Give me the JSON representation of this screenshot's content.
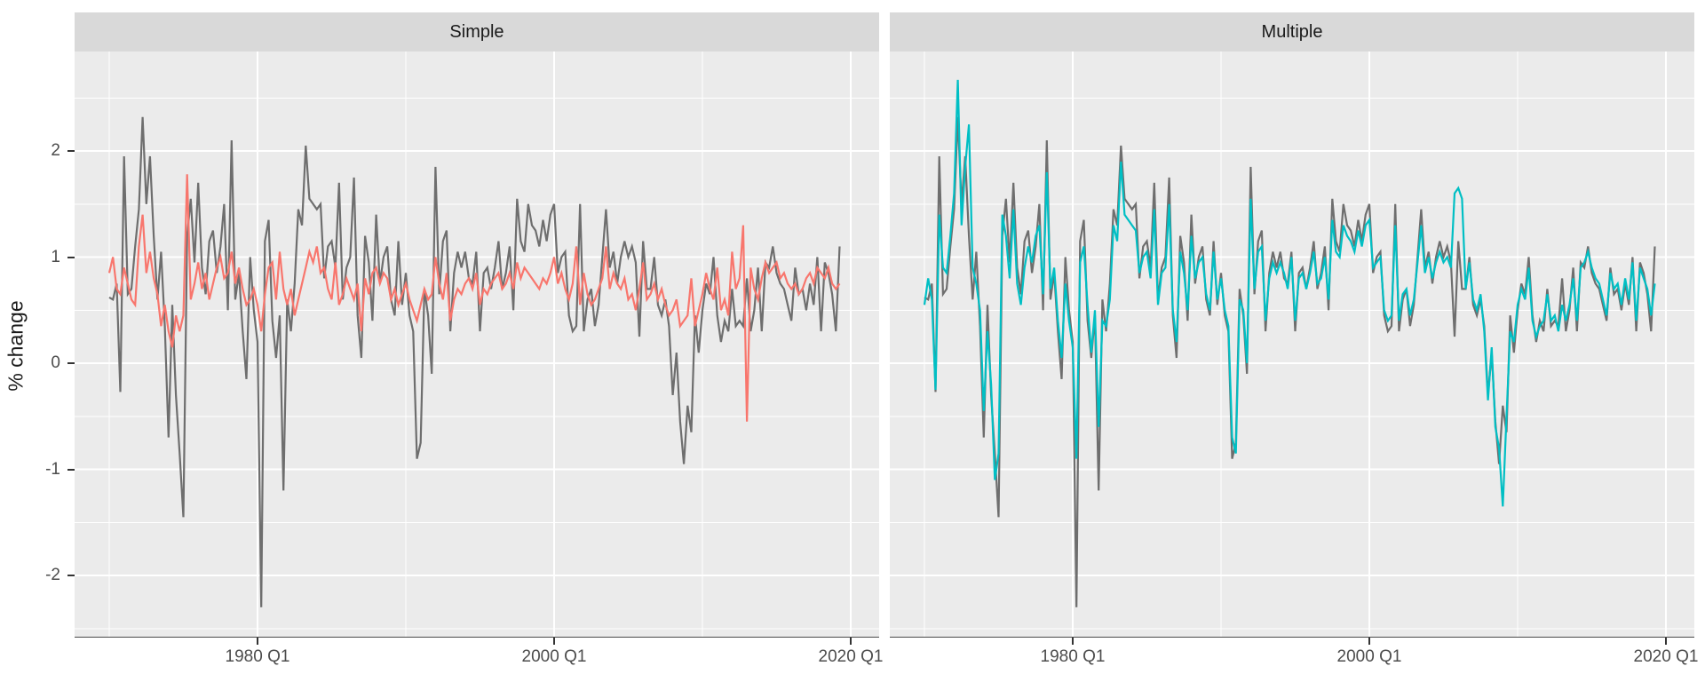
{
  "figure": {
    "y_axis": {
      "title": "% change",
      "ticks": [
        {
          "label": "2",
          "value": 2
        },
        {
          "label": "1",
          "value": 1
        },
        {
          "label": "0",
          "value": 0
        },
        {
          "label": "-1",
          "value": -1
        },
        {
          "label": "-2",
          "value": -2
        }
      ],
      "minor_values": [
        2.5,
        1.5,
        0.5,
        -0.5,
        -1.5,
        -2.5
      ]
    },
    "x_axis": {
      "ticks": [
        {
          "label": "1980 Q1",
          "year": 1980
        },
        {
          "label": "2000 Q1",
          "year": 2000
        },
        {
          "label": "2020 Q1",
          "year": 2020
        }
      ],
      "minor_years": [
        1970,
        1990,
        2010
      ]
    },
    "colors": {
      "data_line": "#6E6E6E",
      "fitted_simple": "#F8766D",
      "fitted_multiple": "#00BFC4",
      "panel_bg": "#EBEBEB",
      "strip_bg": "#D9D9D9",
      "gridline": "#FFFFFF",
      "tick_mark": "#333333",
      "tick_text": "#4D4D4D"
    }
  },
  "chart_data": {
    "type": "line",
    "title": "",
    "xlabel": "",
    "ylabel": "% change",
    "x_start": 1970.0,
    "x_step": 0.25,
    "x_end": 2019.25,
    "ylim_shown": [
      -2.58,
      2.94
    ],
    "grid": "on",
    "legend": "none",
    "facets": [
      {
        "title": "Simple",
        "series_keys": [
          "data",
          "fitted_simple"
        ]
      },
      {
        "title": "Multiple",
        "series_keys": [
          "data",
          "fitted_multiple"
        ]
      }
    ],
    "series": {
      "data": [
        0.62,
        0.6,
        0.75,
        -0.27,
        1.95,
        0.65,
        0.7,
        1.1,
        1.45,
        2.32,
        1.5,
        1.95,
        1.2,
        0.6,
        1.05,
        0.35,
        -0.7,
        0.55,
        -0.3,
        -0.85,
        -1.45,
        1.2,
        1.55,
        0.95,
        1.7,
        0.9,
        0.65,
        1.15,
        1.25,
        0.85,
        1.1,
        1.5,
        0.5,
        2.1,
        0.6,
        0.85,
        0.3,
        -0.15,
        1.0,
        0.5,
        0.2,
        -2.3,
        1.15,
        1.35,
        0.4,
        0.05,
        0.45,
        -1.2,
        0.6,
        0.3,
        0.75,
        1.45,
        1.3,
        2.05,
        1.55,
        1.5,
        1.45,
        1.5,
        0.8,
        1.1,
        1.15,
        0.9,
        1.7,
        0.6,
        0.9,
        1.0,
        1.75,
        0.45,
        0.05,
        1.2,
        0.95,
        0.4,
        1.4,
        0.75,
        1.0,
        1.1,
        0.6,
        0.45,
        1.15,
        0.55,
        0.85,
        0.45,
        0.3,
        -0.9,
        -0.75,
        0.7,
        0.45,
        -0.1,
        1.85,
        0.65,
        1.15,
        1.25,
        0.3,
        0.85,
        1.05,
        0.9,
        1.05,
        0.8,
        0.75,
        1.05,
        0.3,
        0.85,
        0.9,
        0.7,
        0.9,
        1.15,
        0.7,
        0.85,
        1.1,
        0.5,
        1.55,
        1.15,
        1.05,
        1.5,
        1.3,
        1.25,
        1.1,
        1.35,
        1.15,
        1.4,
        1.5,
        0.85,
        1.0,
        1.05,
        0.45,
        0.3,
        0.35,
        1.5,
        0.3,
        0.6,
        0.7,
        0.35,
        0.55,
        1.0,
        1.45,
        0.9,
        1.05,
        0.75,
        1.0,
        1.15,
        1.0,
        1.1,
        0.95,
        0.25,
        1.15,
        0.7,
        0.7,
        1.0,
        0.55,
        0.45,
        0.6,
        0.35,
        -0.3,
        0.1,
        -0.55,
        -0.95,
        -0.4,
        -0.65,
        0.45,
        0.1,
        0.5,
        0.75,
        0.65,
        1.0,
        0.45,
        0.2,
        0.4,
        0.3,
        0.7,
        0.35,
        0.4,
        0.35,
        0.8,
        0.3,
        0.5,
        0.9,
        0.3,
        0.95,
        0.9,
        1.1,
        0.85,
        0.75,
        0.7,
        0.55,
        0.4,
        0.9,
        0.65,
        0.7,
        0.5,
        0.75,
        0.55,
        1.0,
        0.3,
        0.95,
        0.85,
        0.65,
        0.3,
        1.1
      ],
      "fitted_simple": [
        0.85,
        1.0,
        0.7,
        0.65,
        0.9,
        0.75,
        0.6,
        0.55,
        1.1,
        1.4,
        0.85,
        1.05,
        0.8,
        0.65,
        0.35,
        0.55,
        0.3,
        0.15,
        0.45,
        0.3,
        0.45,
        1.78,
        0.6,
        0.75,
        0.95,
        0.7,
        0.85,
        0.6,
        0.75,
        0.9,
        1.0,
        0.8,
        0.85,
        1.05,
        0.75,
        0.9,
        0.7,
        0.55,
        0.6,
        0.7,
        0.55,
        0.3,
        0.65,
        0.9,
        0.95,
        0.6,
        1.05,
        0.7,
        0.55,
        0.7,
        0.45,
        0.6,
        0.75,
        0.9,
        1.05,
        0.95,
        1.1,
        0.85,
        0.9,
        0.7,
        0.6,
        0.95,
        0.55,
        0.65,
        0.8,
        0.7,
        0.6,
        0.75,
        0.3,
        0.8,
        0.65,
        0.85,
        0.9,
        0.75,
        0.85,
        0.8,
        0.6,
        0.7,
        0.55,
        0.65,
        0.75,
        0.6,
        0.5,
        0.4,
        0.55,
        0.7,
        0.6,
        0.65,
        1.0,
        0.75,
        0.6,
        0.85,
        0.4,
        0.6,
        0.7,
        0.65,
        0.75,
        0.8,
        0.7,
        0.85,
        0.55,
        0.7,
        0.65,
        0.75,
        0.8,
        0.85,
        0.7,
        0.75,
        0.85,
        0.7,
        0.95,
        0.8,
        0.9,
        0.85,
        0.8,
        0.75,
        0.7,
        0.8,
        0.75,
        0.85,
        1.0,
        0.75,
        0.85,
        0.7,
        0.6,
        0.75,
        1.1,
        0.55,
        0.85,
        0.65,
        0.55,
        0.6,
        0.7,
        0.8,
        1.1,
        0.7,
        0.85,
        0.75,
        0.7,
        0.8,
        0.6,
        0.65,
        0.5,
        0.7,
        0.95,
        0.6,
        0.65,
        0.75,
        0.6,
        0.7,
        0.55,
        0.45,
        0.5,
        0.6,
        0.35,
        0.4,
        0.45,
        0.8,
        0.35,
        0.5,
        0.65,
        0.85,
        0.7,
        0.6,
        0.9,
        0.5,
        0.6,
        0.45,
        1.05,
        0.7,
        0.8,
        1.3,
        -0.55,
        0.9,
        0.7,
        0.6,
        0.8,
        0.95,
        0.85,
        0.9,
        0.95,
        0.8,
        0.85,
        0.75,
        0.7,
        0.75,
        0.65,
        0.7,
        0.8,
        0.85,
        0.75,
        0.9,
        0.85,
        0.8,
        0.9,
        0.75,
        0.7,
        0.75
      ],
      "fitted_multiple": [
        0.55,
        0.8,
        0.6,
        -0.25,
        1.4,
        0.9,
        0.85,
        1.2,
        1.6,
        2.67,
        1.3,
        1.85,
        2.25,
        0.9,
        0.75,
        0.5,
        -0.45,
        0.3,
        -0.2,
        -1.1,
        -0.85,
        1.4,
        1.2,
        0.8,
        1.45,
        0.75,
        0.55,
        0.9,
        1.1,
        0.95,
        1.2,
        1.3,
        0.65,
        1.8,
        0.7,
        0.9,
        0.4,
        0.05,
        0.75,
        0.4,
        0.15,
        -0.9,
        0.95,
        1.1,
        0.55,
        0.1,
        0.5,
        -0.6,
        0.4,
        0.35,
        0.6,
        1.3,
        1.15,
        1.9,
        1.4,
        1.35,
        1.3,
        1.25,
        0.85,
        1.0,
        1.05,
        0.8,
        1.45,
        0.55,
        0.85,
        0.9,
        1.5,
        0.5,
        0.2,
        1.05,
        0.85,
        0.5,
        1.2,
        0.8,
        0.95,
        1.0,
        0.65,
        0.5,
        1.05,
        0.6,
        0.8,
        0.5,
        0.35,
        -0.7,
        -0.85,
        0.6,
        0.5,
        0.0,
        1.55,
        0.7,
        1.05,
        1.1,
        0.4,
        0.8,
        0.95,
        0.85,
        0.95,
        0.85,
        0.7,
        1.0,
        0.4,
        0.8,
        0.85,
        0.7,
        0.85,
        1.05,
        0.75,
        0.8,
        1.0,
        0.6,
        1.35,
        1.05,
        1.0,
        1.3,
        1.2,
        1.15,
        1.05,
        1.25,
        1.1,
        1.3,
        1.35,
        0.9,
        0.95,
        1.0,
        0.5,
        0.4,
        0.45,
        1.3,
        0.4,
        0.65,
        0.7,
        0.45,
        0.6,
        0.95,
        1.3,
        0.85,
        1.0,
        0.8,
        0.95,
        1.05,
        0.95,
        1.0,
        0.9,
        1.6,
        1.65,
        1.55,
        0.7,
        0.95,
        0.6,
        0.5,
        0.65,
        0.3,
        -0.35,
        0.15,
        -0.6,
        -0.8,
        -1.35,
        -0.5,
        0.3,
        0.2,
        0.55,
        0.7,
        0.6,
        0.9,
        0.4,
        0.25,
        0.35,
        0.4,
        0.65,
        0.4,
        0.45,
        0.3,
        0.55,
        0.4,
        0.55,
        0.8,
        0.4,
        0.9,
        0.95,
        1.05,
        0.9,
        0.8,
        0.75,
        0.6,
        0.45,
        0.85,
        0.7,
        0.75,
        0.55,
        0.8,
        0.6,
        0.95,
        0.4,
        0.9,
        0.8,
        0.7,
        0.45,
        0.75
      ]
    }
  }
}
